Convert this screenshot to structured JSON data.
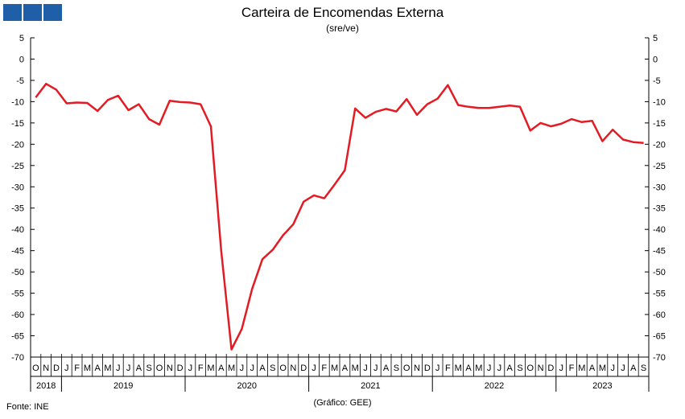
{
  "chart_data": {
    "type": "line",
    "title": "Carteira de Encomendas Externa",
    "subtitle": "(sre/ve)",
    "source": "Fonte: INE",
    "credit": "(Gráfico: GEE)",
    "ylim": [
      -70,
      5
    ],
    "y_ticks": [
      5,
      0,
      -5,
      -10,
      -15,
      -20,
      -25,
      -30,
      -35,
      -40,
      -45,
      -50,
      -55,
      -60,
      -65,
      -70
    ],
    "grid": false,
    "line_color": "#e31b23",
    "logo_color": "#1f5fa8",
    "start": "2018-10",
    "month_labels": [
      "O",
      "N",
      "D",
      "J",
      "F",
      "M",
      "A",
      "M",
      "J",
      "J",
      "A",
      "S",
      "O",
      "N",
      "D",
      "J",
      "F",
      "M",
      "A",
      "M",
      "J",
      "J",
      "A",
      "S",
      "O",
      "N",
      "D",
      "J",
      "F",
      "M",
      "A",
      "M",
      "J",
      "J",
      "A",
      "S",
      "O",
      "N",
      "D",
      "J",
      "F",
      "M",
      "A",
      "M",
      "J",
      "J",
      "A",
      "S",
      "O",
      "N",
      "D",
      "J",
      "F",
      "M",
      "A",
      "M",
      "J",
      "J",
      "A",
      "S"
    ],
    "years": [
      {
        "label": "2018",
        "start": 0,
        "end": 3
      },
      {
        "label": "2019",
        "start": 3,
        "end": 15
      },
      {
        "label": "2020",
        "start": 15,
        "end": 27
      },
      {
        "label": "2021",
        "start": 27,
        "end": 39
      },
      {
        "label": "2022",
        "start": 39,
        "end": 51
      },
      {
        "label": "2023",
        "start": 51,
        "end": 60
      }
    ],
    "series": [
      {
        "values": [
          -9.0,
          -5.8,
          -7.2,
          -10.4,
          -10.2,
          -10.3,
          -12.2,
          -9.6,
          -8.6,
          -12.0,
          -10.6,
          -14.1,
          -15.4,
          -9.8,
          -10.1,
          -10.2,
          -10.6,
          -15.8,
          -45.0,
          -68.2,
          -63.4,
          -54.0,
          -47.0,
          -44.8,
          -41.4,
          -38.8,
          -33.5,
          -32.0,
          -32.7,
          -29.5,
          -26.1,
          -11.6,
          -13.8,
          -12.4,
          -11.7,
          -12.3,
          -9.4,
          -13.1,
          -10.6,
          -9.3,
          -6.1,
          -10.8,
          -11.2,
          -11.5,
          -11.5,
          -11.2,
          -10.9,
          -11.2,
          -16.8,
          -15.0,
          -15.8,
          -15.2,
          -14.1,
          -14.8,
          -14.5,
          -19.3,
          -16.6,
          -18.9,
          -19.5,
          -19.7
        ]
      }
    ]
  }
}
